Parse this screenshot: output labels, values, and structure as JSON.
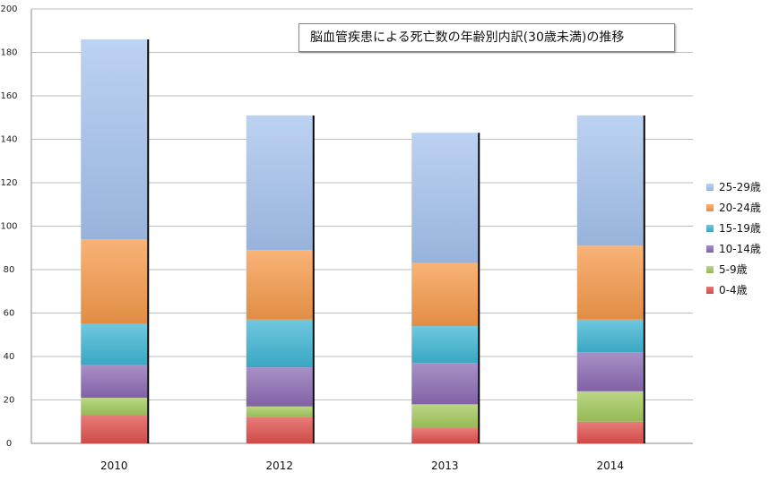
{
  "chart_data": {
    "type": "bar",
    "stacked": true,
    "title": "脳血管疾患による死亡数の年齢別内訳(30歳未満)の推移",
    "categories": [
      "2010",
      "2012",
      "2013",
      "2014"
    ],
    "series": [
      {
        "name": "0-4歳",
        "color": "#e0504d",
        "values": [
          13,
          12,
          7,
          10
        ]
      },
      {
        "name": "5-9歳",
        "color": "#a3c95c",
        "values": [
          8,
          5,
          11,
          14
        ]
      },
      {
        "name": "10-14歳",
        "color": "#8b6bb3",
        "values": [
          15,
          18,
          19,
          18
        ]
      },
      {
        "name": "15-19歳",
        "color": "#3fb6d3",
        "values": [
          19,
          22,
          17,
          15
        ]
      },
      {
        "name": "20-24歳",
        "color": "#f6994a",
        "values": [
          39,
          32,
          29,
          34
        ]
      },
      {
        "name": "25-29歳",
        "color": "#a5c3ee",
        "values": [
          92,
          62,
          60,
          60
        ]
      }
    ],
    "ylim": [
      0,
      200
    ],
    "yticks": [
      0,
      20,
      40,
      60,
      80,
      100,
      120,
      140,
      160,
      180,
      200
    ],
    "grid": true,
    "legend_position": "right",
    "xlabel": "",
    "ylabel": ""
  }
}
